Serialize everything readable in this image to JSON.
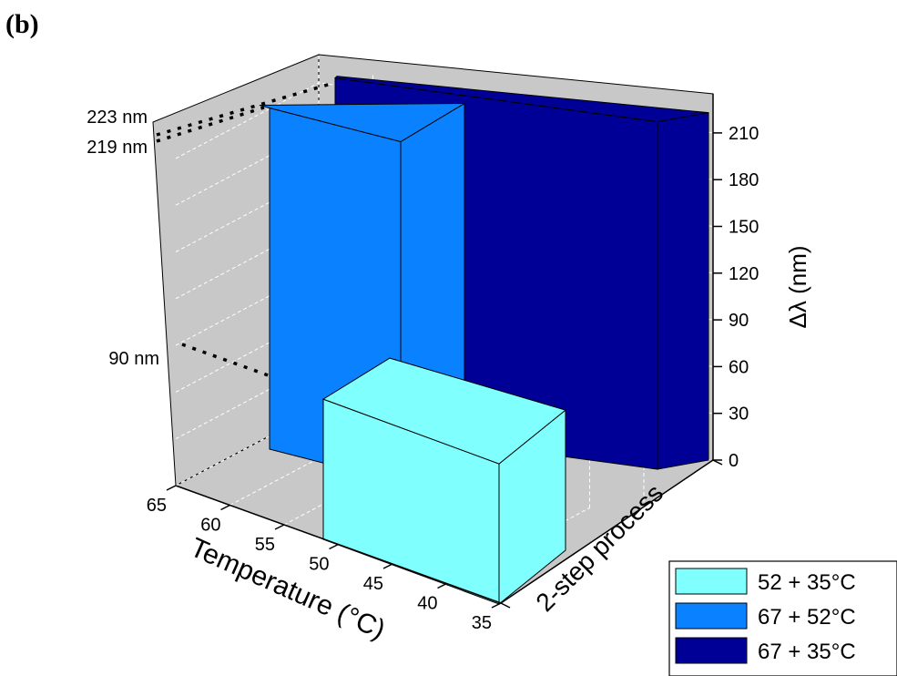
{
  "chart_data": {
    "type": "bar3d",
    "panel_label": "(b)",
    "zlabel": "Δλ (nm)",
    "xlabel": "Temperature (°C)",
    "ylabel": "",
    "y_category": "2-step process",
    "z_ticks": [
      0,
      30,
      60,
      90,
      120,
      150,
      180,
      210
    ],
    "zlim": [
      0,
      230
    ],
    "x_ticks": [
      65,
      60,
      55,
      50,
      45,
      40,
      35
    ],
    "grid": true,
    "legend_position": "bottom-right",
    "reference_labels": [
      "223 nm",
      "219 nm",
      "90 nm"
    ],
    "series": [
      {
        "name": "52 + 35°C",
        "value": 90,
        "color": "#80ffff"
      },
      {
        "name": "67 + 52°C",
        "value": 219,
        "color": "#0a82ff"
      },
      {
        "name": "67 + 35°C",
        "value": 223,
        "color": "#000096"
      }
    ]
  }
}
